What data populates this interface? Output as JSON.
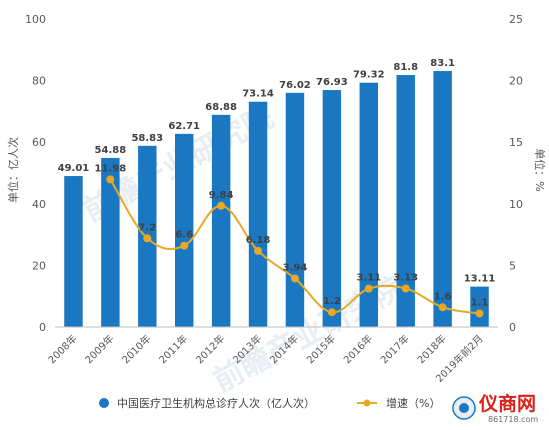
{
  "colors": {
    "bar": "#1a78c2",
    "line": "#e7a826",
    "logo": "#d8231c"
  },
  "watermark": "前瞻产业研究院",
  "logo": {
    "text": "仪商网",
    "url": "861718.com"
  },
  "legend": [
    {
      "label": "中国医疗卫生机构总诊疗人次（亿人次）",
      "marker": "circle"
    },
    {
      "label": "增速（%）",
      "marker": "line-dot"
    }
  ],
  "chart_data": {
    "type": "bar",
    "categories": [
      "2008年",
      "2009年",
      "2010年",
      "2011年",
      "2012年",
      "2013年",
      "2014年",
      "2015年",
      "2016年",
      "2017年",
      "2018年",
      "2019年前2月"
    ],
    "series": [
      {
        "name": "中国医疗卫生机构总诊疗人次（亿人次）",
        "type": "bar",
        "axis": "left",
        "values": [
          49.01,
          54.88,
          58.83,
          62.71,
          68.88,
          73.14,
          76.02,
          76.93,
          79.32,
          81.8,
          83.1,
          13.11
        ]
      },
      {
        "name": "增速（%）",
        "type": "line",
        "axis": "right",
        "values": [
          null,
          11.98,
          7.2,
          6.6,
          9.84,
          6.18,
          3.94,
          1.2,
          3.11,
          3.13,
          1.6,
          1.1
        ]
      }
    ],
    "ylabel": "单位：亿人次",
    "y2label": "单位：%",
    "ylim": [
      0,
      100
    ],
    "y2lim": [
      0,
      25
    ],
    "yticks": [
      "0",
      "20",
      "40",
      "60",
      "80",
      "100"
    ],
    "y2ticks": [
      "0",
      "5",
      "10",
      "15",
      "20",
      "25"
    ],
    "grid": false,
    "legend_position": "bottom"
  }
}
